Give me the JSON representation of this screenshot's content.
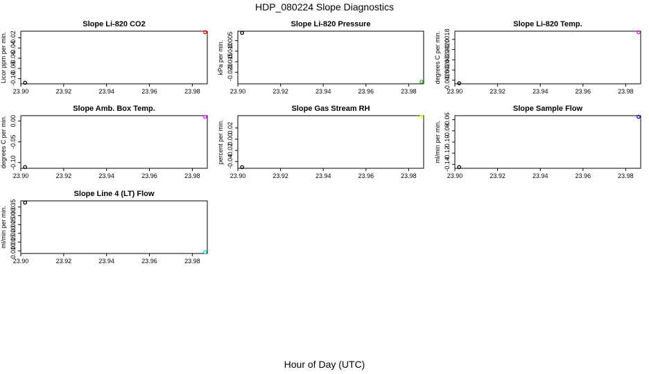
{
  "page": {
    "title": "HDP_080224  Slope Diagnostics",
    "xlabel": "Hour of Day (UTC)"
  },
  "chart_data": [
    {
      "type": "scatter",
      "title": "Slope Li-820 CO2",
      "ylabel": "Licor ppm per min.",
      "xlim": [
        23.9,
        23.987
      ],
      "ylim": [
        -0.11,
        -0.007
      ],
      "xticks": [
        "23.90",
        "23.92",
        "23.94",
        "23.96",
        "23.98"
      ],
      "yticks": [
        {
          "value": -0.1,
          "label": "-0.10"
        },
        {
          "value": -0.08,
          "label": "-0.08"
        },
        {
          "value": -0.06,
          "label": "-0.06"
        },
        {
          "value": -0.04,
          "label": "-0.04"
        },
        {
          "value": -0.02,
          "label": "-0.02"
        }
      ],
      "points": [
        {
          "x": 23.902,
          "y": -0.108,
          "color": "#000000"
        },
        {
          "x": 23.986,
          "y": -0.009,
          "color": "#ff0000"
        }
      ]
    },
    {
      "type": "scatter",
      "title": "Slope Li-820 Pressure",
      "ylabel": "kPa per min.",
      "xlim": [
        23.9,
        23.987
      ],
      "ylim": [
        -0.0255,
        -0.0005
      ],
      "xticks": [
        "23.90",
        "23.92",
        "23.94",
        "23.96",
        "23.98"
      ],
      "yticks": [
        {
          "value": -0.02,
          "label": "-0.020"
        },
        {
          "value": -0.015,
          "label": "-0.015"
        },
        {
          "value": -0.01,
          "label": "-0.010"
        },
        {
          "value": -0.005,
          "label": "-0.005"
        }
      ],
      "points": [
        {
          "x": 23.902,
          "y": -0.0013,
          "color": "#000000"
        },
        {
          "x": 23.986,
          "y": -0.0245,
          "color": "#00cd00"
        }
      ]
    },
    {
      "type": "scatter",
      "title": "Slope Li-820 Temp.",
      "ylabel": "degrees C per min.",
      "xlim": [
        23.9,
        23.987
      ],
      "ylim": [
        -0.00267,
        -0.00164
      ],
      "xticks": [
        "23.90",
        "23.92",
        "23.94",
        "23.96",
        "23.98"
      ],
      "yticks": [
        {
          "value": -0.0026,
          "label": "-0.0026"
        },
        {
          "value": -0.0024,
          "label": "-0.0024"
        },
        {
          "value": -0.0022,
          "label": "-0.0022"
        },
        {
          "value": -0.002,
          "label": "-0.0020"
        },
        {
          "value": -0.0018,
          "label": "-0.0018"
        }
      ],
      "points": [
        {
          "x": 23.902,
          "y": -0.00266,
          "color": "#000000"
        },
        {
          "x": 23.986,
          "y": -0.00166,
          "color": "#ff00ff"
        }
      ]
    },
    {
      "type": "scatter",
      "title": "Slope Amb. Box Temp.",
      "ylabel": "degrees C per min.",
      "xlim": [
        23.9,
        23.987
      ],
      "ylim": [
        -0.114,
        0.013
      ],
      "xticks": [
        "23.90",
        "23.92",
        "23.94",
        "23.96",
        "23.98"
      ],
      "yticks": [
        {
          "value": -0.1,
          "label": "-0.10"
        },
        {
          "value": -0.05,
          "label": "-0.05"
        },
        {
          "value": 0.0,
          "label": "0.00"
        }
      ],
      "points": [
        {
          "x": 23.902,
          "y": -0.111,
          "color": "#000000"
        },
        {
          "x": 23.986,
          "y": 0.01,
          "color": "#ff00ff"
        }
      ]
    },
    {
      "type": "scatter",
      "title": "Slope Gas Stream RH",
      "ylabel": "percent per min.",
      "xlim": [
        23.9,
        23.987
      ],
      "ylim": [
        -0.052,
        0.042
      ],
      "xticks": [
        "23.90",
        "23.92",
        "23.94",
        "23.96",
        "23.98"
      ],
      "yticks": [
        {
          "value": -0.04,
          "label": "-0.04"
        },
        {
          "value": -0.02,
          "label": "-0.02"
        },
        {
          "value": 0.0,
          "label": "0.00"
        },
        {
          "value": 0.02,
          "label": "0.02"
        }
      ],
      "points": [
        {
          "x": 23.902,
          "y": -0.05,
          "color": "#000000"
        },
        {
          "x": 23.986,
          "y": 0.04,
          "color": "#ffff00"
        }
      ]
    },
    {
      "type": "scatter",
      "title": "Slope Sample Flow",
      "ylabel": "ml/min per min.",
      "xlim": [
        23.9,
        23.987
      ],
      "ylim": [
        -0.147,
        -0.053
      ],
      "xticks": [
        "23.90",
        "23.92",
        "23.94",
        "23.96",
        "23.98"
      ],
      "yticks": [
        {
          "value": -0.14,
          "label": "-0.14"
        },
        {
          "value": -0.12,
          "label": "-0.12"
        },
        {
          "value": -0.1,
          "label": "-0.10"
        },
        {
          "value": -0.08,
          "label": "-0.08"
        },
        {
          "value": -0.06,
          "label": "-0.06"
        }
      ],
      "points": [
        {
          "x": 23.902,
          "y": -0.145,
          "color": "#000000"
        },
        {
          "x": 23.986,
          "y": -0.055,
          "color": "#0000cd"
        }
      ]
    },
    {
      "type": "scatter",
      "title": "Slope Line 4 (LT) Flow",
      "ylabel": "ml/min per min.",
      "xlim": [
        23.9,
        23.987
      ],
      "ylim": [
        0.0085,
        0.0385
      ],
      "xticks": [
        "23.90",
        "23.92",
        "23.94",
        "23.96",
        "23.98"
      ],
      "yticks": [
        {
          "value": 0.01,
          "label": "0.010"
        },
        {
          "value": 0.015,
          "label": "0.015"
        },
        {
          "value": 0.02,
          "label": "0.020"
        },
        {
          "value": 0.025,
          "label": "0.025"
        },
        {
          "value": 0.03,
          "label": "0.030"
        },
        {
          "value": 0.035,
          "label": "0.035"
        }
      ],
      "points": [
        {
          "x": 23.902,
          "y": 0.0375,
          "color": "#000000"
        },
        {
          "x": 23.986,
          "y": 0.0093,
          "color": "#00cdcd"
        }
      ]
    }
  ]
}
